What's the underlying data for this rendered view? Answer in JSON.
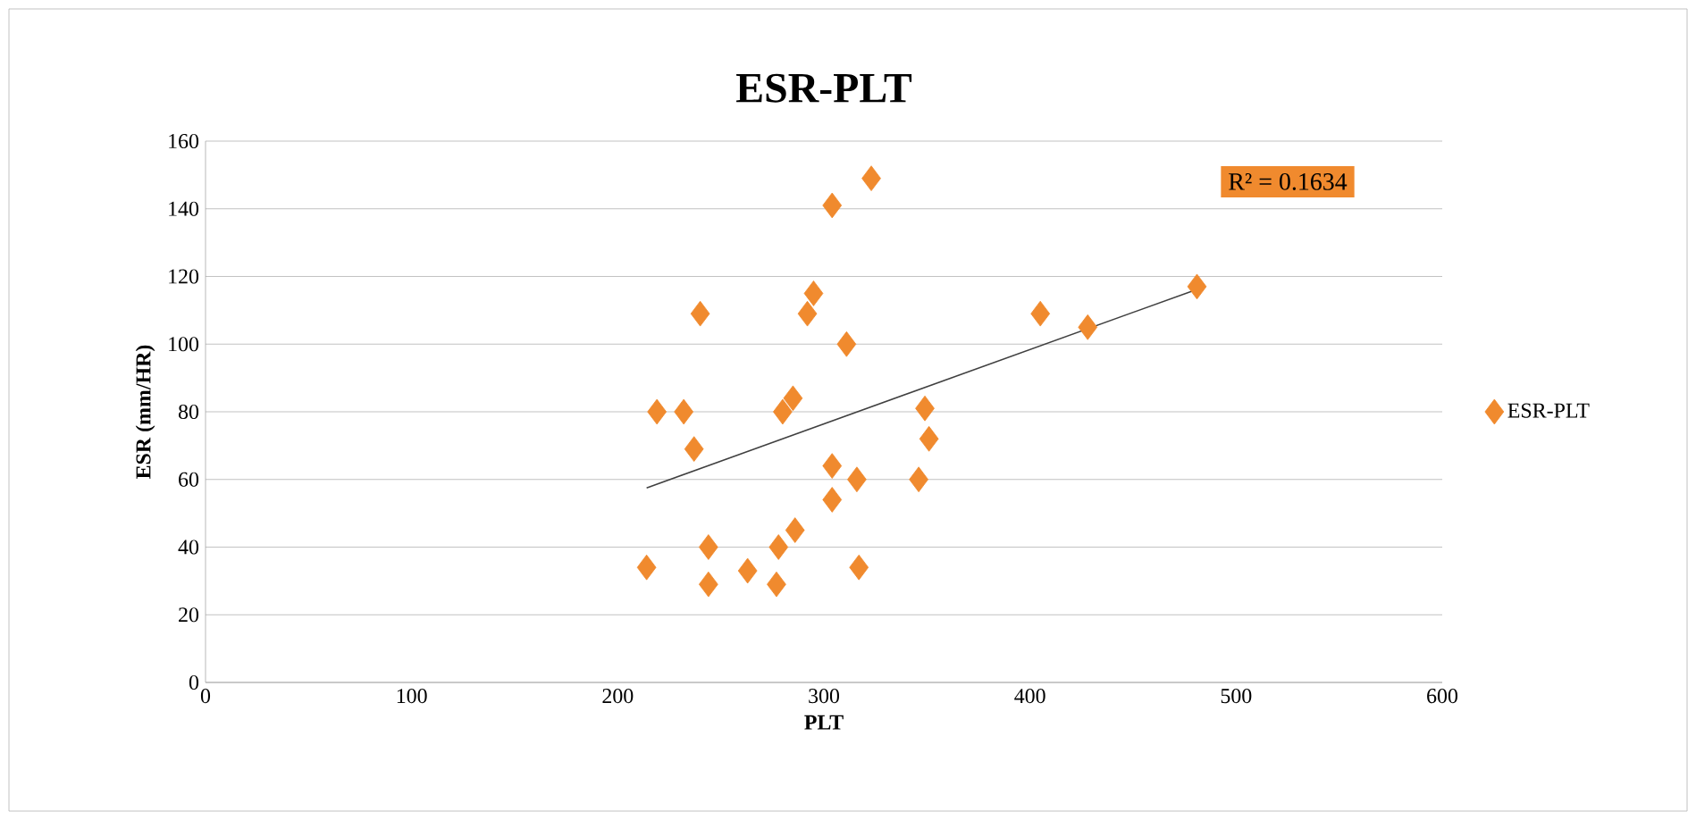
{
  "chart_data": {
    "type": "scatter",
    "title": "ESR-PLT",
    "xlabel": "PLT",
    "ylabel": "ESR (mm/HR)",
    "xlim": [
      0,
      600
    ],
    "xticks": [
      0,
      100,
      200,
      300,
      400,
      500,
      600
    ],
    "ylim": [
      0,
      160
    ],
    "yticks": [
      0,
      20,
      40,
      60,
      80,
      100,
      120,
      140,
      160
    ],
    "grid": "y",
    "legend": "right",
    "marker": "diamond",
    "annotations": [
      "R² = 0.1634"
    ],
    "series": [
      {
        "name": "ESR-PLT",
        "color": "#f08a2e",
        "x": [
          214,
          219,
          232,
          237,
          240,
          244,
          244,
          263,
          277,
          278,
          286,
          280,
          285,
          292,
          295,
          304,
          304,
          304,
          311,
          316,
          317,
          323,
          346,
          349,
          351,
          405,
          428,
          481
        ],
        "values": [
          34,
          80,
          80,
          69,
          109,
          40,
          29,
          33,
          29,
          40,
          45,
          80,
          84,
          109,
          115,
          141,
          64,
          54,
          100,
          60,
          34,
          149,
          60,
          81,
          72,
          109,
          105,
          117
        ]
      },
      {
        "type": "line",
        "color": "#404040",
        "marker": "none",
        "x": [
          214,
          481
        ],
        "values": [
          57.5,
          116.2
        ]
      }
    ]
  }
}
